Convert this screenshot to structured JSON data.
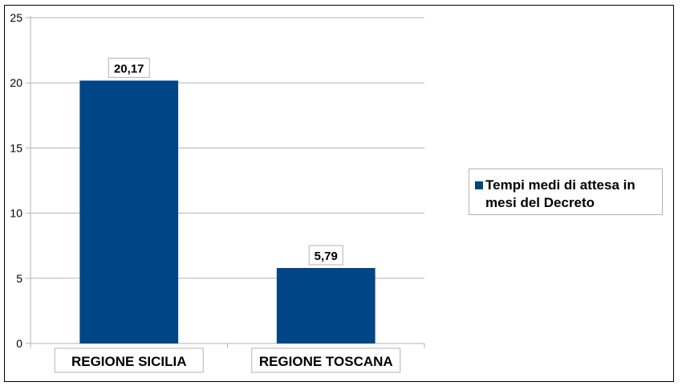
{
  "chart_data": {
    "type": "bar",
    "categories": [
      "REGIONE SICILIA",
      "REGIONE TOSCANA"
    ],
    "series": [
      {
        "name": "Tempi medi di attesa in mesi del Decreto",
        "values": [
          20.17,
          5.79
        ]
      }
    ],
    "data_labels": [
      "20,17",
      "5,79"
    ],
    "y_ticks": [
      "0",
      "5",
      "10",
      "15",
      "20",
      "25"
    ],
    "ylim": [
      0,
      25
    ],
    "grid": true,
    "legend_position": "right",
    "colors": {
      "bar": "#004586",
      "grid": "#b3b3b3",
      "axis": "#b3b3b3"
    }
  }
}
